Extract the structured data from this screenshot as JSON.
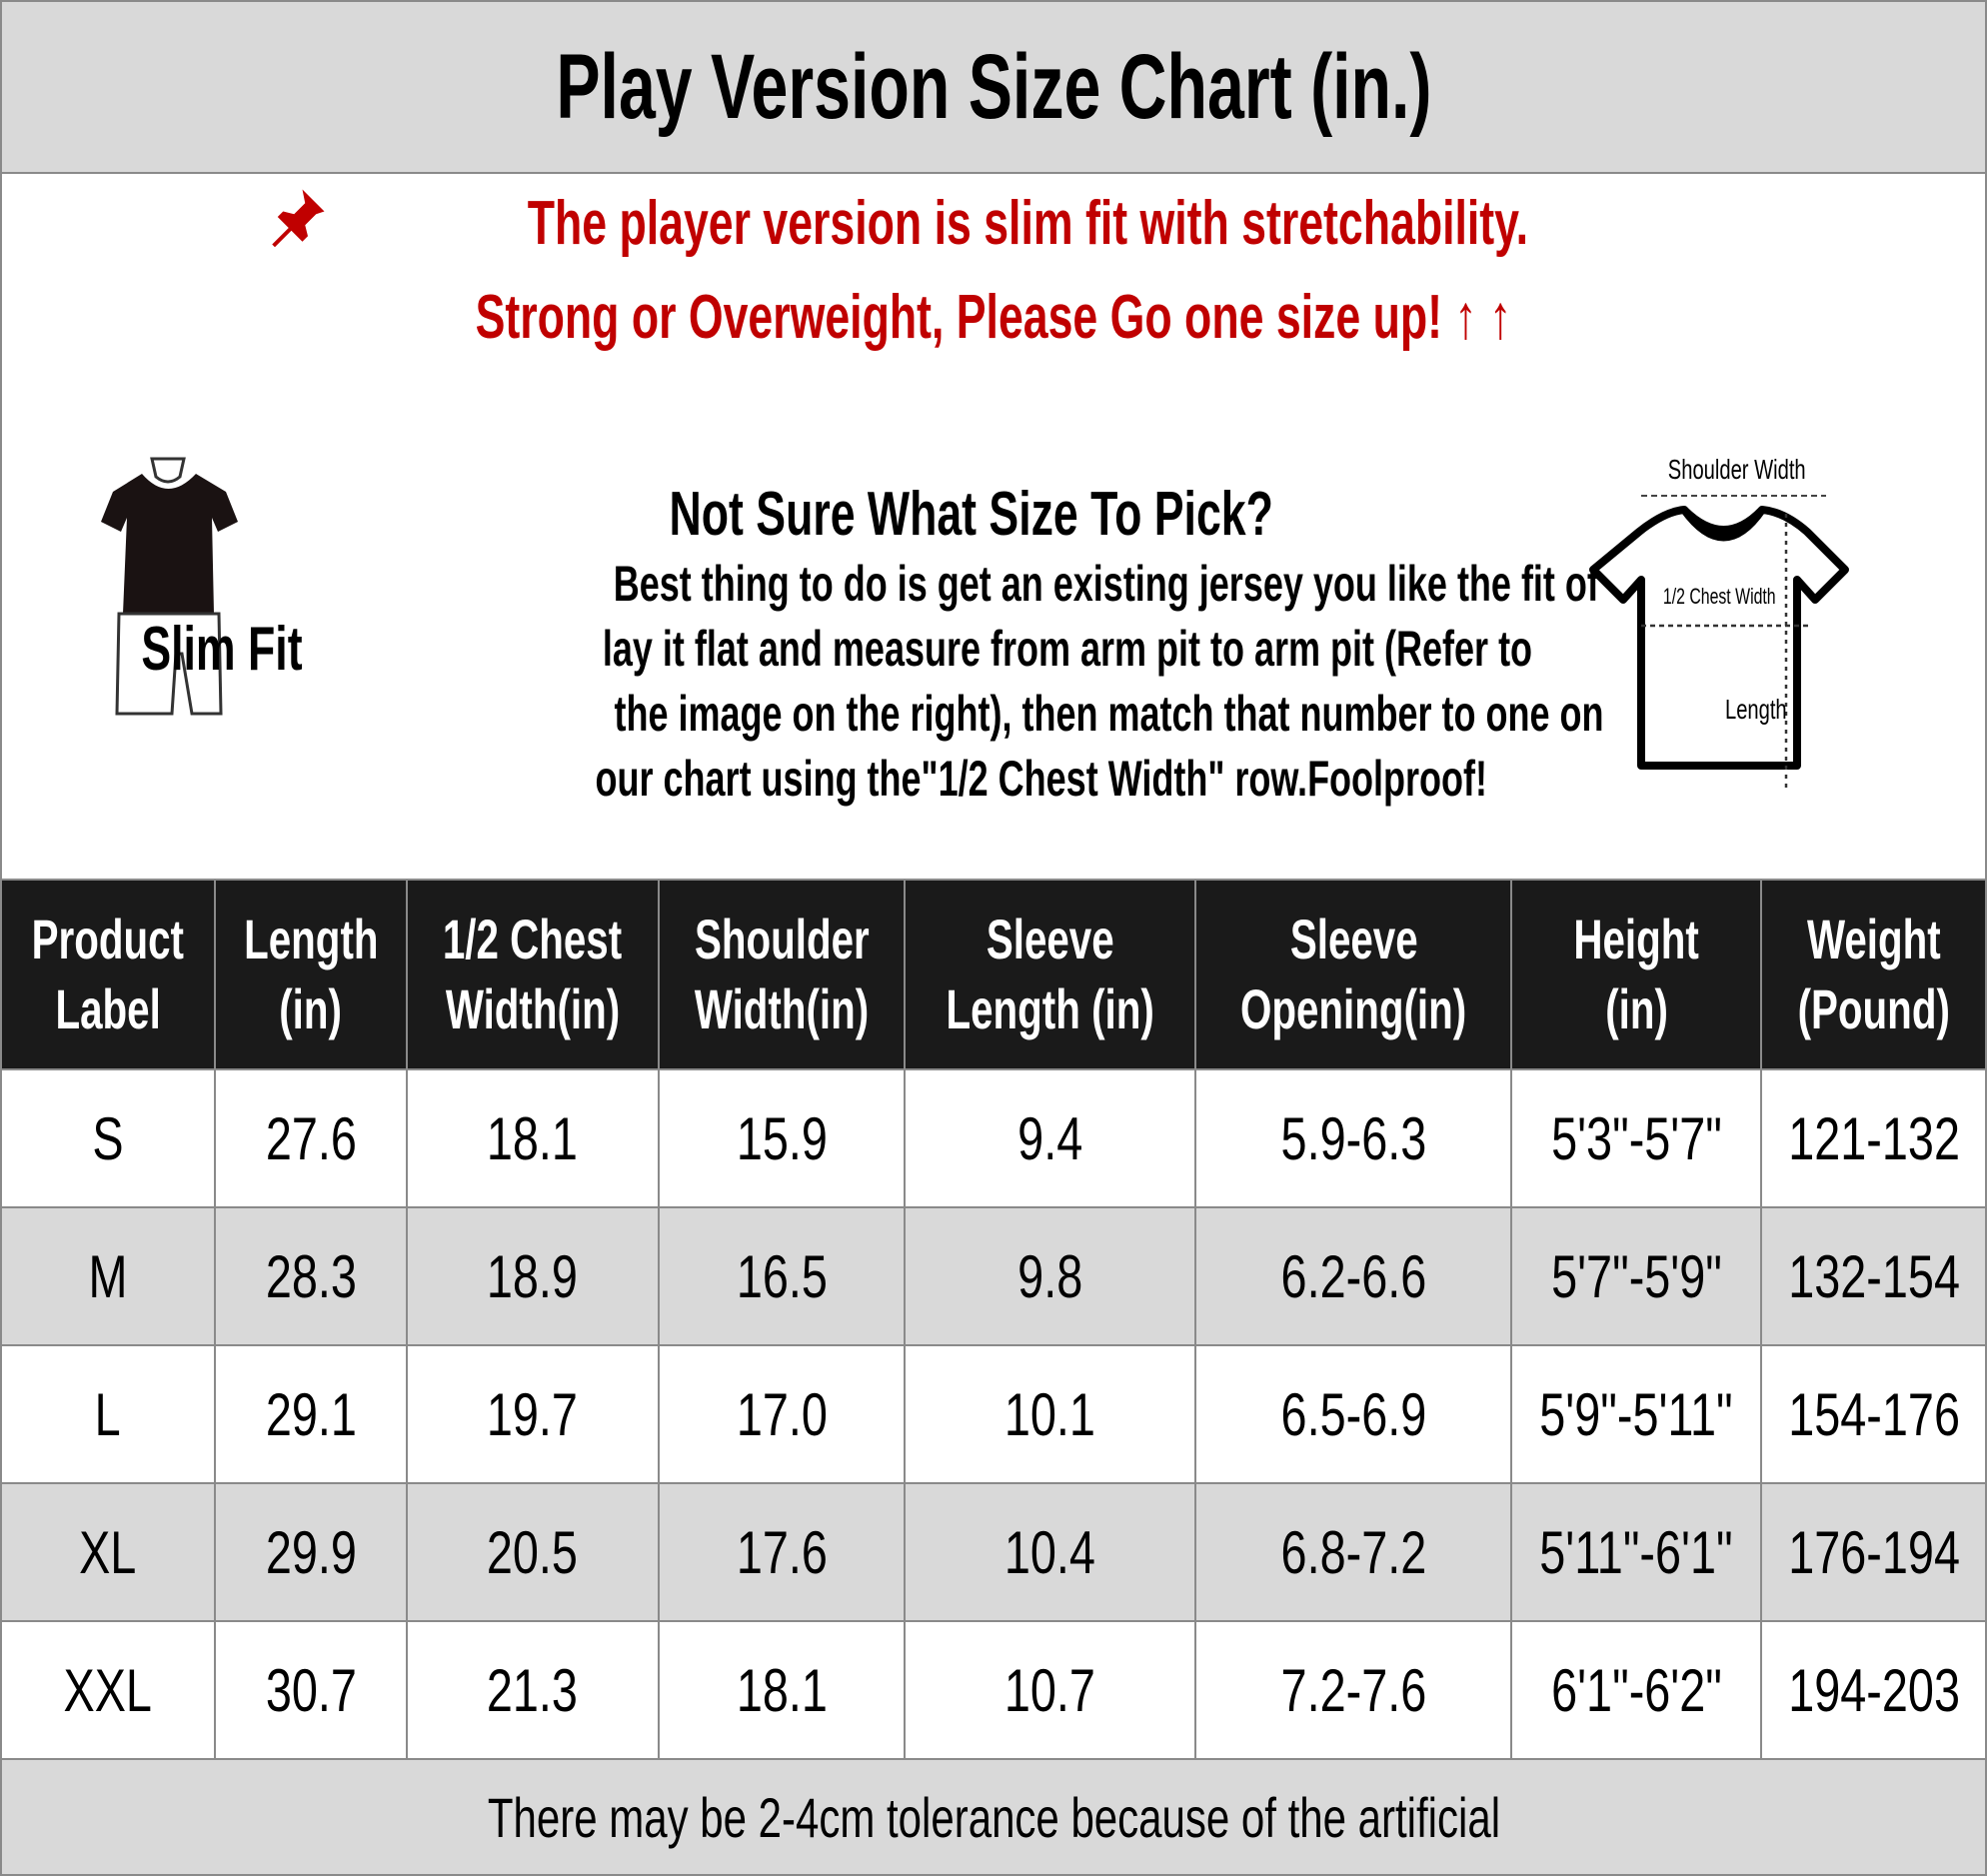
{
  "title": "Play Version Size Chart (in.)",
  "notice": {
    "line1": "The player version is slim fit with stretchability.",
    "line2": "Strong or Overweight, Please Go one size up! ↑ ↑",
    "color": "#c00000",
    "pin_icon": "pushpin-icon"
  },
  "help": {
    "heading": "Not Sure What Size To Pick?",
    "lines": [
      "Best thing to do is get an existing jersey you like the fit of",
      "lay it flat and measure from arm pit to arm pit (Refer to",
      "the image on the right), then match that number to one on",
      "our chart using the\"1/2 Chest Width\" row.Foolproof!"
    ]
  },
  "slim_fit_label": "Slim Fit",
  "diagram": {
    "shoulder": "Shoulder Width",
    "chest": "1/2 Chest Width",
    "length": "Length"
  },
  "table": {
    "headers": [
      [
        "Product",
        "Label"
      ],
      [
        "Length",
        "(in)"
      ],
      [
        "1/2 Chest",
        "Width(in)"
      ],
      [
        "Shoulder",
        "Width(in)"
      ],
      [
        "Sleeve",
        "Length (in)"
      ],
      [
        "Sleeve",
        "Opening(in)"
      ],
      [
        "Height",
        "(in)"
      ],
      [
        "Weight",
        "(Pound)"
      ]
    ],
    "rows": [
      [
        "S",
        "27.6",
        "18.1",
        "15.9",
        "9.4",
        "5.9-6.3",
        "5'3\"-5'7\"",
        "121-132"
      ],
      [
        "M",
        "28.3",
        "18.9",
        "16.5",
        "9.8",
        "6.2-6.6",
        "5'7\"-5'9\"",
        "132-154"
      ],
      [
        "L",
        "29.1",
        "19.7",
        "17.0",
        "10.1",
        "6.5-6.9",
        "5'9\"-5'11\"",
        "154-176"
      ],
      [
        "XL",
        "29.9",
        "20.5",
        "17.6",
        "10.4",
        "6.8-7.2",
        "5'11\"-6'1\"",
        "176-194"
      ],
      [
        "XXL",
        "30.7",
        "21.3",
        "18.1",
        "10.7",
        "7.2-7.6",
        "6'1\"-6'2\"",
        "194-203"
      ]
    ]
  },
  "footer": "There may be 2-4cm tolerance because of the artificial"
}
